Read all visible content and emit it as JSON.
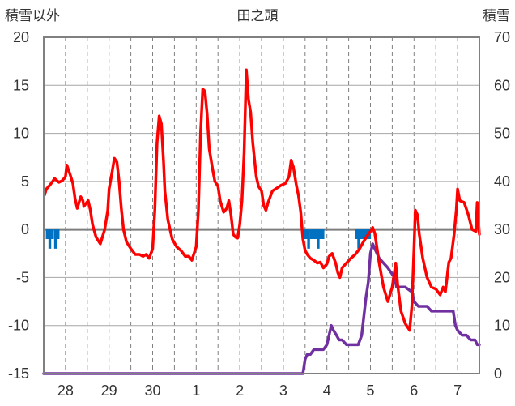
{
  "chart_data": {
    "type": "line",
    "title": "田之頭",
    "ylabel_left": "積雪以外",
    "ylabel_right": "積雪",
    "ylim_left": [
      -15,
      20
    ],
    "ylim_right": [
      0,
      70
    ],
    "yticks_left": [
      "20",
      "15",
      "10",
      "5",
      "0",
      "-5",
      "-10",
      "-15"
    ],
    "yticks_right": [
      "70",
      "60",
      "50",
      "40",
      "30",
      "20",
      "10",
      "0"
    ],
    "xlim_days": [
      -0.5,
      9.5
    ],
    "x_ticks": [
      {
        "label": "28",
        "day": 0
      },
      {
        "label": "29",
        "day": 1
      },
      {
        "label": "30",
        "day": 2
      },
      {
        "label": "1",
        "day": 3
      },
      {
        "label": "2",
        "day": 4
      },
      {
        "label": "3",
        "day": 5
      },
      {
        "label": "4",
        "day": 6
      },
      {
        "label": "5",
        "day": 7
      },
      {
        "label": "6",
        "day": 8
      },
      {
        "label": "7",
        "day": 9
      }
    ],
    "grid": "dashed vertical at days and half-days, solid horizontal at every 5",
    "colors": {
      "temperature": "#ff0000",
      "precipitation": "#0070c0",
      "snow_depth": "#7030a0",
      "zero_line": "#7f7f7f",
      "grid": "#808080"
    },
    "series": [
      {
        "key": "temperature",
        "axis": "left",
        "points": [
          [
            -0.48,
            3.6
          ],
          [
            -0.44,
            4.2
          ],
          [
            -0.36,
            4.6
          ],
          [
            -0.25,
            5.3
          ],
          [
            -0.15,
            4.9
          ],
          [
            -0.07,
            5.1
          ],
          [
            0.0,
            5.5
          ],
          [
            0.03,
            6.7
          ],
          [
            0.1,
            5.8
          ],
          [
            0.17,
            4.8
          ],
          [
            0.22,
            3.2
          ],
          [
            0.27,
            2.2
          ],
          [
            0.35,
            3.4
          ],
          [
            0.4,
            3.0
          ],
          [
            0.42,
            2.4
          ],
          [
            0.52,
            3.0
          ],
          [
            0.57,
            2.0
          ],
          [
            0.62,
            0.5
          ],
          [
            0.7,
            -0.8
          ],
          [
            0.8,
            -1.5
          ],
          [
            0.9,
            0.0
          ],
          [
            0.97,
            2.0
          ],
          [
            1.0,
            4.2
          ],
          [
            1.07,
            6.0
          ],
          [
            1.12,
            7.4
          ],
          [
            1.18,
            7.0
          ],
          [
            1.23,
            5.0
          ],
          [
            1.28,
            2.2
          ],
          [
            1.33,
            0.0
          ],
          [
            1.4,
            -1.3
          ],
          [
            1.5,
            -2.0
          ],
          [
            1.6,
            -2.6
          ],
          [
            1.7,
            -2.6
          ],
          [
            1.78,
            -2.8
          ],
          [
            1.85,
            -2.6
          ],
          [
            1.92,
            -3.0
          ],
          [
            2.0,
            -2.0
          ],
          [
            2.05,
            2.0
          ],
          [
            2.1,
            9.0
          ],
          [
            2.15,
            11.8
          ],
          [
            2.2,
            11.0
          ],
          [
            2.25,
            7.0
          ],
          [
            2.28,
            4.0
          ],
          [
            2.35,
            1.0
          ],
          [
            2.45,
            -1.0
          ],
          [
            2.55,
            -1.8
          ],
          [
            2.65,
            -2.2
          ],
          [
            2.75,
            -2.8
          ],
          [
            2.83,
            -2.8
          ],
          [
            2.9,
            -3.2
          ],
          [
            3.0,
            -1.8
          ],
          [
            3.05,
            2.0
          ],
          [
            3.1,
            10.0
          ],
          [
            3.15,
            14.6
          ],
          [
            3.2,
            14.4
          ],
          [
            3.25,
            12.0
          ],
          [
            3.3,
            8.4
          ],
          [
            3.38,
            6.2
          ],
          [
            3.43,
            5.0
          ],
          [
            3.5,
            4.5
          ],
          [
            3.55,
            3.0
          ],
          [
            3.63,
            1.8
          ],
          [
            3.7,
            2.2
          ],
          [
            3.75,
            3.0
          ],
          [
            3.8,
            1.5
          ],
          [
            3.85,
            -0.5
          ],
          [
            3.9,
            -0.8
          ],
          [
            3.95,
            -0.9
          ],
          [
            4.0,
            0.5
          ],
          [
            4.05,
            3.0
          ],
          [
            4.1,
            8.0
          ],
          [
            4.15,
            16.6
          ],
          [
            4.2,
            13.5
          ],
          [
            4.25,
            12.2
          ],
          [
            4.3,
            9.0
          ],
          [
            4.38,
            5.5
          ],
          [
            4.43,
            4.5
          ],
          [
            4.5,
            4.0
          ],
          [
            4.55,
            2.5
          ],
          [
            4.6,
            2.0
          ],
          [
            4.65,
            2.8
          ],
          [
            4.75,
            4.0
          ],
          [
            4.85,
            4.3
          ],
          [
            4.95,
            4.6
          ],
          [
            5.05,
            4.8
          ],
          [
            5.13,
            5.5
          ],
          [
            5.18,
            7.2
          ],
          [
            5.23,
            6.5
          ],
          [
            5.3,
            4.6
          ],
          [
            5.35,
            3.5
          ],
          [
            5.4,
            1.8
          ],
          [
            5.45,
            -1.0
          ],
          [
            5.5,
            -2.2
          ],
          [
            5.55,
            -2.6
          ],
          [
            5.62,
            -3.0
          ],
          [
            5.7,
            -3.2
          ],
          [
            5.78,
            -3.5
          ],
          [
            5.85,
            -3.4
          ],
          [
            5.92,
            -4.0
          ],
          [
            6.0,
            -3.6
          ],
          [
            6.05,
            -2.8
          ],
          [
            6.12,
            -2.5
          ],
          [
            6.2,
            -3.5
          ],
          [
            6.25,
            -4.5
          ],
          [
            6.3,
            -5.0
          ],
          [
            6.35,
            -4.0
          ],
          [
            6.45,
            -3.5
          ],
          [
            6.55,
            -3.0
          ],
          [
            6.65,
            -2.6
          ],
          [
            6.75,
            -2.0
          ],
          [
            6.85,
            -1.2
          ],
          [
            6.95,
            -0.5
          ],
          [
            7.0,
            -0.2
          ],
          [
            7.05,
            0.2
          ],
          [
            7.1,
            -0.4
          ],
          [
            7.2,
            -3.5
          ],
          [
            7.3,
            -6.0
          ],
          [
            7.4,
            -7.5
          ],
          [
            7.5,
            -6.0
          ],
          [
            7.58,
            -3.5
          ],
          [
            7.63,
            -6.0
          ],
          [
            7.7,
            -8.5
          ],
          [
            7.8,
            -9.8
          ],
          [
            7.9,
            -10.5
          ],
          [
            7.95,
            -8.0
          ],
          [
            8.0,
            -2.0
          ],
          [
            8.03,
            2.0
          ],
          [
            8.08,
            1.5
          ],
          [
            8.12,
            -0.5
          ],
          [
            8.2,
            -3.0
          ],
          [
            8.3,
            -5.0
          ],
          [
            8.4,
            -6.0
          ],
          [
            8.5,
            -6.2
          ],
          [
            8.6,
            -6.8
          ],
          [
            8.67,
            -6.0
          ],
          [
            8.72,
            -6.5
          ],
          [
            8.8,
            -3.4
          ],
          [
            8.85,
            -3.0
          ],
          [
            8.92,
            -0.5
          ],
          [
            8.97,
            2.0
          ],
          [
            9.0,
            4.2
          ],
          [
            9.05,
            3.0
          ],
          [
            9.15,
            2.8
          ],
          [
            9.25,
            1.5
          ],
          [
            9.33,
            0.0
          ],
          [
            9.42,
            -0.2
          ],
          [
            9.45,
            2.8
          ],
          [
            9.5,
            -0.5
          ]
        ]
      },
      {
        "key": "snow_depth",
        "axis": "right",
        "points": [
          [
            -0.5,
            0
          ],
          [
            5.45,
            0
          ],
          [
            5.5,
            3
          ],
          [
            5.55,
            4
          ],
          [
            5.62,
            4
          ],
          [
            5.7,
            5
          ],
          [
            5.8,
            5
          ],
          [
            5.92,
            5
          ],
          [
            6.0,
            6
          ],
          [
            6.05,
            8
          ],
          [
            6.1,
            10
          ],
          [
            6.15,
            9
          ],
          [
            6.22,
            8
          ],
          [
            6.28,
            7
          ],
          [
            6.35,
            7
          ],
          [
            6.45,
            6
          ],
          [
            6.55,
            6
          ],
          [
            6.65,
            6
          ],
          [
            6.72,
            6
          ],
          [
            6.8,
            8
          ],
          [
            6.85,
            12
          ],
          [
            6.9,
            16
          ],
          [
            6.95,
            19
          ],
          [
            7.0,
            25
          ],
          [
            7.05,
            27
          ],
          [
            7.1,
            26
          ],
          [
            7.2,
            24
          ],
          [
            7.3,
            23
          ],
          [
            7.4,
            22
          ],
          [
            7.55,
            20
          ],
          [
            7.6,
            18
          ],
          [
            7.7,
            18
          ],
          [
            7.8,
            18
          ],
          [
            7.95,
            17
          ],
          [
            8.0,
            15
          ],
          [
            8.1,
            14
          ],
          [
            8.2,
            14
          ],
          [
            8.3,
            14
          ],
          [
            8.4,
            13
          ],
          [
            8.5,
            13
          ],
          [
            8.6,
            13
          ],
          [
            8.7,
            13
          ],
          [
            8.8,
            13
          ],
          [
            8.9,
            13
          ],
          [
            8.95,
            10
          ],
          [
            9.0,
            9
          ],
          [
            9.1,
            8
          ],
          [
            9.2,
            8
          ],
          [
            9.3,
            7
          ],
          [
            9.4,
            7
          ],
          [
            9.45,
            6
          ],
          [
            9.5,
            6
          ]
        ]
      },
      {
        "key": "precipitation",
        "axis": "left",
        "bars_from_zero": [
          [
            -0.42,
            -1.0
          ],
          [
            -0.36,
            -2.0
          ],
          [
            -0.3,
            -1.0
          ],
          [
            -0.23,
            -2.0
          ],
          [
            -0.17,
            -1.0
          ],
          [
            5.48,
            -1.0
          ],
          [
            5.53,
            -1.0
          ],
          [
            5.58,
            -2.0
          ],
          [
            5.64,
            -1.0
          ],
          [
            5.7,
            -1.0
          ],
          [
            5.75,
            -1.0
          ],
          [
            5.8,
            -2.0
          ],
          [
            5.86,
            -1.0
          ],
          [
            5.91,
            -1.0
          ],
          [
            6.68,
            -1.0
          ],
          [
            6.73,
            -2.0
          ],
          [
            6.78,
            -1.0
          ],
          [
            6.83,
            -1.0
          ],
          [
            6.88,
            -1.0
          ],
          [
            6.93,
            -1.0
          ],
          [
            6.98,
            -1.0
          ]
        ]
      }
    ]
  }
}
